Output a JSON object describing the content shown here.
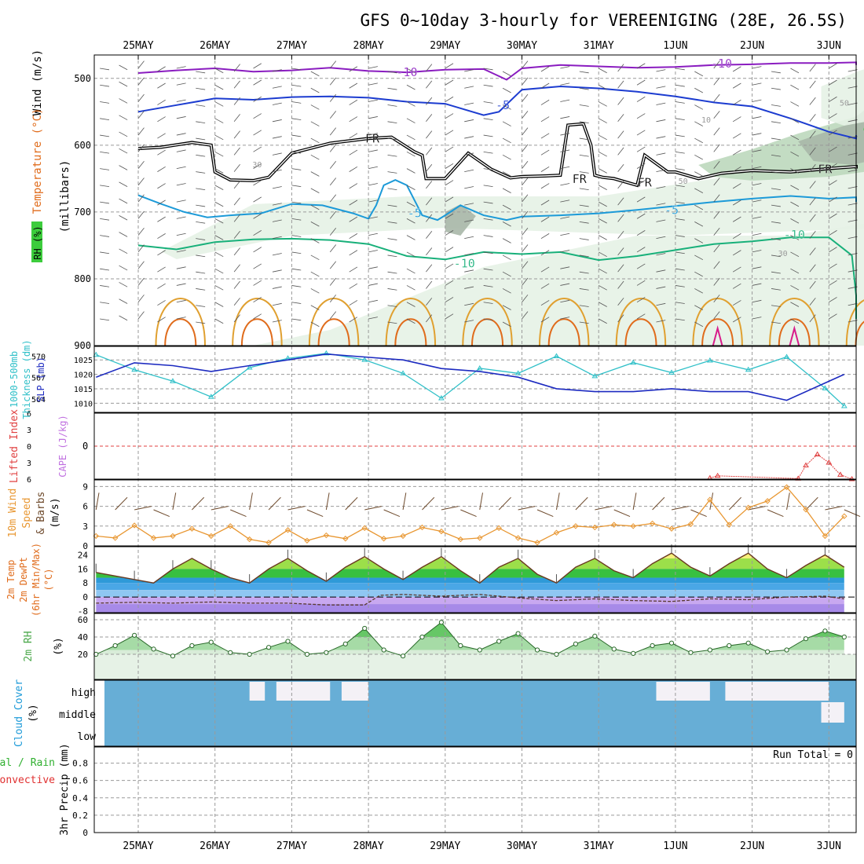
{
  "title": "GFS 0~10day 3-hourly for VEREENIGING (28E, 26.5S)",
  "colors": {
    "grid": "#9a9a9a",
    "frame": "#000000",
    "temp_purple": "#8a1cc0",
    "temp_blue": "#1c3cd0",
    "temp_lightblue": "#1c9ad8",
    "temp_green": "#18b07a",
    "temp_orange": "#e0a030",
    "temp_darkorange": "#e06c1c",
    "temp_magenta": "#d81c8a",
    "rh_light": "#e6f2e6",
    "rh_mid": "#bcd8bc",
    "rh_gray": "#a9b7a9",
    "rh_green": "#3ccc3c",
    "thickness": "#30c0c8",
    "slp": "#1c2ac0",
    "lifted": "#e04040",
    "cape": "#c070e0",
    "wind10": "#e89630",
    "barb": "#6e4a2c",
    "cloud": "#67aed6",
    "cloud_gap": "#f4f1f6",
    "rh2m": "#4aa84a",
    "precip_green": "#30b030",
    "precip_red": "#e03030"
  },
  "chart_data": [
    {
      "type": "contour",
      "id": "upper_air",
      "title": "Upper-air cross section",
      "ylabel": "(millibars)",
      "left_labels": [
        "Wind (m/s)",
        "Temperature (°C)",
        "RH (%)"
      ],
      "y_ticks": [
        500,
        600,
        700,
        800,
        900
      ],
      "ylim": [
        900,
        465
      ],
      "date_labels": [
        "25MAY",
        "26MAY",
        "27MAY",
        "28MAY",
        "29MAY",
        "30MAY",
        "31MAY",
        "1JUN",
        "2JUN",
        "3JUN"
      ],
      "contour_labels": [
        {
          "text": "-10",
          "day": 3.5,
          "p": 491
        },
        {
          "text": "-10",
          "day": 7.6,
          "p": 478
        },
        {
          "text": "-5",
          "day": 4.75,
          "p": 540
        },
        {
          "text": "FR",
          "day": 3.05,
          "p": 590
        },
        {
          "text": "FR",
          "day": 5.75,
          "p": 651
        },
        {
          "text": "FR",
          "day": 6.6,
          "p": 656
        },
        {
          "text": "FR",
          "day": 8.95,
          "p": 636
        },
        {
          "text": "-5",
          "day": 3.6,
          "p": 702
        },
        {
          "text": "-5",
          "day": 6.95,
          "p": 697
        },
        {
          "text": "-10",
          "day": 4.25,
          "p": 777
        },
        {
          "text": "-10",
          "day": 8.55,
          "p": 734
        },
        {
          "text": "50",
          "day": 9.2,
          "p": 535
        },
        {
          "text": "10",
          "day": 7.4,
          "p": 560
        },
        {
          "text": "30",
          "day": 1.55,
          "p": 627
        },
        {
          "text": "30",
          "day": 8.4,
          "p": 760
        },
        {
          "text": "50",
          "day": 7.1,
          "p": 652
        }
      ],
      "series": [
        {
          "name": "-10C",
          "day": [
            0,
            0.5,
            1,
            1.5,
            2,
            2.5,
            3,
            3.5,
            4,
            4.5,
            4.8,
            5,
            5.5,
            6,
            6.5,
            7,
            7.5,
            8,
            8.5,
            9,
            9.5,
            9.75
          ],
          "p": [
            492,
            488,
            485,
            490,
            488,
            484,
            489,
            491,
            487,
            486,
            502,
            485,
            480,
            482,
            484,
            483,
            480,
            479,
            477,
            477,
            476,
            480
          ]
        },
        {
          "name": "-5C",
          "day": [
            0,
            0.5,
            1,
            1.5,
            2,
            2.5,
            3,
            3.5,
            4,
            4.5,
            4.7,
            5,
            5.5,
            6,
            6.5,
            7,
            7.5,
            8,
            8.5,
            9,
            9.5,
            9.75
          ],
          "p": [
            550,
            540,
            530,
            532,
            528,
            527,
            529,
            535,
            538,
            555,
            550,
            517,
            512,
            515,
            520,
            527,
            536,
            542,
            560,
            580,
            590,
            585
          ]
        },
        {
          "name": "FR",
          "day": [
            0,
            0.3,
            0.7,
            0.95,
            1.0,
            1.2,
            1.5,
            1.7,
            2.0,
            2.5,
            3.0,
            3.3,
            3.6,
            3.7,
            3.75,
            4.0,
            4.3,
            4.6,
            4.85,
            5.0,
            5.3,
            5.5,
            5.6,
            5.8,
            5.9,
            5.95,
            6.05,
            6.2,
            6.5,
            6.6,
            6.9,
            7.0,
            7.3,
            7.6,
            8.0,
            8.5,
            9.0,
            9.5,
            9.75
          ],
          "p": [
            605,
            603,
            596,
            600,
            640,
            652,
            653,
            648,
            612,
            597,
            590,
            588,
            610,
            615,
            650,
            650,
            612,
            636,
            649,
            647,
            646,
            645,
            570,
            568,
            600,
            645,
            648,
            650,
            660,
            615,
            640,
            640,
            650,
            642,
            638,
            640,
            635,
            632,
            635
          ]
        },
        {
          "name": "-5C lower",
          "day": [
            0,
            0.3,
            0.6,
            0.9,
            1.2,
            1.6,
            2.0,
            2.4,
            2.8,
            3.0,
            3.1,
            3.2,
            3.35,
            3.5,
            3.7,
            3.9,
            4.0,
            4.2,
            4.5,
            4.8,
            5.0,
            5.5,
            6.0,
            6.5,
            7.0,
            7.5,
            8.0,
            8.5,
            9.0,
            9.5,
            9.75
          ],
          "p": [
            675,
            688,
            700,
            708,
            705,
            702,
            688,
            690,
            702,
            710,
            690,
            660,
            652,
            660,
            705,
            712,
            705,
            690,
            705,
            712,
            707,
            705,
            702,
            697,
            691,
            685,
            680,
            676,
            680,
            678,
            685
          ]
        },
        {
          "name": "-10C lower",
          "day": [
            0,
            0.5,
            1.0,
            1.5,
            2.0,
            2.5,
            3.0,
            3.5,
            4.0,
            4.5,
            5.0,
            5.5,
            6.0,
            6.5,
            7.0,
            7.5,
            8.0,
            8.5,
            9.0,
            9.3,
            9.55,
            9.75
          ],
          "p": [
            750,
            756,
            745,
            741,
            740,
            742,
            748,
            766,
            771,
            760,
            763,
            760,
            772,
            766,
            757,
            748,
            744,
            738,
            738,
            765,
            825,
            860
          ]
        }
      ]
    },
    {
      "type": "line",
      "id": "thickness_slp",
      "left_labels": [
        "1000-500mb",
        "Thickness (dm)",
        "SLP (mb)"
      ],
      "y_ticks_thickness": [
        564,
        567,
        570
      ],
      "y_ticks_slp": [
        1010,
        1015,
        1020,
        1025
      ],
      "series": [
        {
          "name": "1000-500mb Thickness (dm)",
          "day": [
            0,
            0.5,
            1,
            1.5,
            2,
            2.5,
            3,
            3.5,
            4,
            4.5,
            5,
            5.5,
            6,
            6.5,
            7,
            7.5,
            8,
            8.5,
            9,
            9.5,
            9.75
          ],
          "values": [
            570.2,
            568.1,
            566.5,
            564.3,
            568.4,
            569.7,
            570.4,
            569.5,
            567.6,
            564.1,
            568.3,
            567.6,
            570.0,
            567.2,
            569.1,
            567.7,
            569.4,
            568.1,
            569.9,
            565.5,
            563.0
          ]
        },
        {
          "name": "SLP (mb)",
          "day": [
            0,
            0.5,
            1,
            1.5,
            2,
            2.5,
            3,
            3.5,
            4,
            4.5,
            5,
            5.5,
            6,
            6.5,
            7,
            7.5,
            8,
            8.5,
            9,
            9.5,
            9.75
          ],
          "values": [
            1019,
            1024,
            1023,
            1021,
            1023,
            1025,
            1027,
            1026,
            1025,
            1022,
            1021,
            1019,
            1015,
            1014,
            1014,
            1015,
            1014,
            1014,
            1011,
            1017,
            1020
          ]
        }
      ]
    },
    {
      "type": "line",
      "id": "lifted_cape",
      "left_labels": [
        "Lifted Index",
        "CAPE (J/kg)"
      ],
      "y_ticks": [
        -6,
        -3,
        0,
        3,
        6
      ],
      "series": [
        {
          "name": "Lifted Index",
          "day": [
            7.45,
            7.55,
            8.6,
            8.7,
            8.85,
            9.0,
            9.15,
            9.3
          ],
          "values": [
            5.8,
            5.4,
            5.9,
            3.5,
            1.5,
            3.0,
            5.2,
            6.0
          ]
        }
      ]
    },
    {
      "type": "line",
      "id": "wind10m",
      "left_labels": [
        "10m Wind",
        "Speed",
        "& Barbs",
        "(m/s)"
      ],
      "y_ticks": [
        0,
        3,
        6,
        9
      ],
      "series": [
        {
          "name": "10m Wind Speed",
          "day": [
            0,
            0.25,
            0.5,
            0.75,
            1.0,
            1.25,
            1.5,
            1.75,
            2.0,
            2.25,
            2.5,
            2.75,
            3.0,
            3.25,
            3.5,
            3.75,
            4.0,
            4.25,
            4.5,
            4.75,
            5.0,
            5.25,
            5.5,
            5.75,
            6.0,
            6.25,
            6.5,
            6.75,
            7.0,
            7.25,
            7.5,
            7.75,
            8.0,
            8.25,
            8.5,
            8.75,
            9.0,
            9.25,
            9.5,
            9.75
          ],
          "values": [
            1.5,
            1.2,
            3.1,
            1.2,
            1.5,
            2.6,
            1.5,
            3.0,
            1.0,
            0.5,
            2.4,
            0.8,
            1.6,
            1.1,
            2.7,
            1.1,
            1.5,
            2.8,
            2.2,
            1.0,
            1.2,
            2.7,
            1.2,
            0.5,
            2.0,
            3.0,
            2.8,
            3.2,
            3.0,
            3.4,
            2.6,
            3.3,
            7.0,
            3.2,
            5.8,
            6.8,
            8.9,
            5.5,
            1.5,
            4.5
          ]
        }
      ]
    },
    {
      "type": "area",
      "id": "temp2m",
      "left_labels": [
        "2m Temp",
        "2m DewPt",
        "(6hr Min/Max)",
        "(°C)"
      ],
      "y_ticks": [
        -8,
        0,
        8,
        16,
        24
      ],
      "series": [
        {
          "name": "2m Temp",
          "day": [
            0,
            0.25,
            0.5,
            0.75,
            1,
            1.25,
            1.5,
            1.75,
            2,
            2.25,
            2.5,
            2.75,
            3,
            3.25,
            3.5,
            3.75,
            4,
            4.25,
            4.5,
            4.75,
            5,
            5.25,
            5.5,
            5.75,
            6,
            6.25,
            6.5,
            6.75,
            7,
            7.25,
            7.5,
            7.75,
            8,
            8.25,
            8.5,
            8.75,
            9,
            9.25,
            9.5,
            9.75
          ],
          "values": [
            14,
            12,
            10,
            8,
            16,
            22,
            16,
            11,
            8,
            16,
            22,
            15,
            9,
            17,
            23,
            16,
            10,
            17,
            23,
            15,
            8,
            17,
            22,
            13,
            8,
            17,
            22,
            15,
            11,
            19,
            25,
            17,
            12,
            19,
            25,
            16,
            11,
            18,
            24,
            17
          ]
        },
        {
          "name": "2m DewPt",
          "day": [
            0,
            0.5,
            1,
            1.5,
            2,
            2.5,
            3,
            3.5,
            3.7,
            4,
            4.5,
            5,
            5.5,
            6,
            6.5,
            7,
            7.5,
            8,
            8.5,
            9,
            9.5,
            9.75
          ],
          "values": [
            -3.5,
            -3.0,
            -3.5,
            -2.8,
            -3.5,
            -3.5,
            -4.5,
            -4.5,
            1.0,
            1.5,
            0.5,
            1.5,
            -0.5,
            -2.0,
            -1.0,
            -2.0,
            -2.5,
            -1.0,
            -1.5,
            0.0,
            0.5,
            -1.0
          ]
        }
      ]
    },
    {
      "type": "area",
      "id": "rh2m",
      "left_labels": [
        "2m RH",
        "(%)"
      ],
      "y_ticks": [
        20,
        40,
        60
      ],
      "series": [
        {
          "name": "2m RH",
          "day": [
            0,
            0.25,
            0.5,
            0.75,
            1,
            1.25,
            1.5,
            1.75,
            2,
            2.25,
            2.5,
            2.75,
            3,
            3.25,
            3.5,
            3.75,
            4,
            4.25,
            4.5,
            4.75,
            5,
            5.25,
            5.5,
            5.75,
            6,
            6.25,
            6.5,
            6.75,
            7,
            7.25,
            7.5,
            7.75,
            8,
            8.25,
            8.5,
            8.75,
            9,
            9.25,
            9.5,
            9.75
          ],
          "values": [
            20,
            30,
            42,
            26,
            18,
            30,
            34,
            22,
            20,
            28,
            35,
            20,
            22,
            32,
            50,
            25,
            18,
            40,
            57,
            30,
            25,
            35,
            44,
            25,
            20,
            32,
            41,
            26,
            21,
            30,
            33,
            22,
            25,
            30,
            33,
            23,
            25,
            38,
            47,
            40
          ]
        }
      ]
    },
    {
      "type": "heatmap",
      "id": "cloud",
      "left_labels": [
        "Cloud Cover",
        "(%)"
      ],
      "levels": [
        "high",
        "middle",
        "low"
      ],
      "note": "high-cloud gaps by day",
      "gaps": [
        {
          "day_start": 2.0,
          "day_end": 2.2,
          "level": "high"
        },
        {
          "day_start": 2.35,
          "day_end": 3.05,
          "level": "high"
        },
        {
          "day_start": 3.2,
          "day_end": 3.55,
          "level": "high"
        },
        {
          "day_start": 7.3,
          "day_end": 8.0,
          "level": "high"
        },
        {
          "day_start": 8.2,
          "day_end": 9.55,
          "level": "high"
        },
        {
          "day_start": 9.45,
          "day_end": 9.75,
          "level": "middle"
        }
      ]
    },
    {
      "type": "bar",
      "id": "precip",
      "left_labels": [
        "Total / Rain",
        "Convective",
        "3hr Precip (mm)"
      ],
      "y_ticks": [
        0,
        0.2,
        0.4,
        0.6,
        0.8
      ],
      "ylim": [
        0,
        0.95
      ],
      "series": [
        {
          "name": "3hr Precip",
          "values": []
        }
      ],
      "annotation": "Run Total = 0"
    }
  ]
}
